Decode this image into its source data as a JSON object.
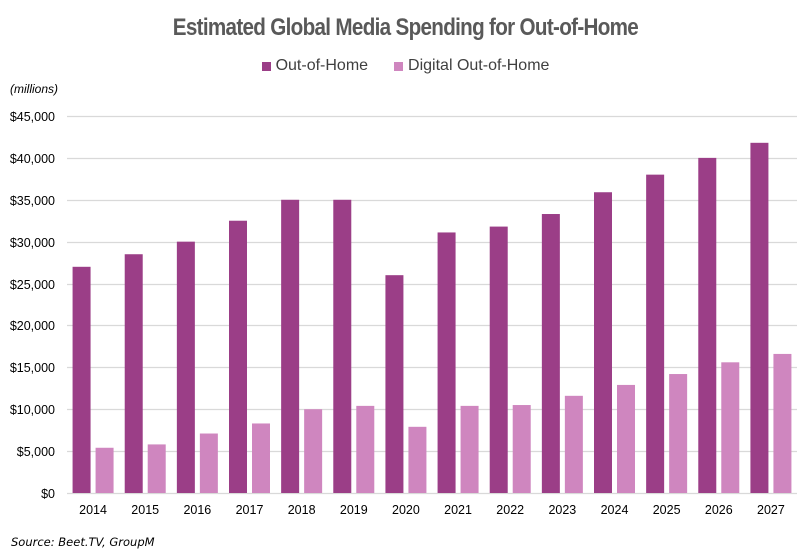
{
  "chart_data": {
    "type": "bar",
    "title": "Estimated Global Media Spending for Out-of-Home",
    "units_label": "(millions)",
    "source": "Source: Beet.TV, GroupM",
    "xlabel": "",
    "ylabel": "",
    "ylim": [
      0,
      45000
    ],
    "y_ticks": [
      0,
      5000,
      10000,
      15000,
      20000,
      25000,
      30000,
      35000,
      40000,
      45000
    ],
    "y_tick_labels": [
      "$0",
      "$5,000",
      "$10,000",
      "$15,000",
      "$20,000",
      "$25,000",
      "$30,000",
      "$35,000",
      "$40,000",
      "$45,000"
    ],
    "grid": true,
    "legend_position": "top-center",
    "categories": [
      "2014",
      "2015",
      "2016",
      "2017",
      "2018",
      "2019",
      "2020",
      "2021",
      "2022",
      "2023",
      "2024",
      "2025",
      "2026",
      "2027"
    ],
    "series": [
      {
        "name": "Out-of-Home",
        "color": "#9B3E87",
        "values": [
          27000,
          28500,
          30000,
          32500,
          35000,
          35000,
          26000,
          31100,
          31800,
          33300,
          35900,
          38000,
          40000,
          41800
        ]
      },
      {
        "name": "Digital Out-of-Home",
        "color": "#CF86BF",
        "values": [
          5400,
          5800,
          7100,
          8300,
          10000,
          10400,
          7900,
          10400,
          10500,
          11600,
          12900,
          14200,
          15600,
          16600
        ]
      }
    ]
  }
}
